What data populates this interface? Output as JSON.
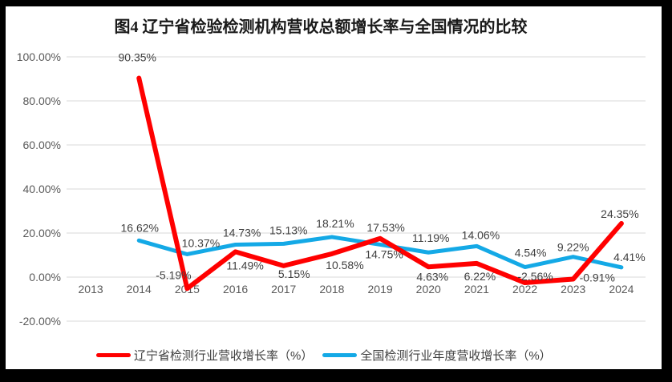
{
  "chart_data": {
    "type": "line",
    "title": "图4 辽宁省检验检测机构营收总额增长率与全国情况的比较",
    "categories": [
      "2013",
      "2014",
      "2015",
      "2016",
      "2017",
      "2018",
      "2019",
      "2020",
      "2021",
      "2022",
      "2023",
      "2024"
    ],
    "y_tick_labels": [
      "100.00%",
      "80.00%",
      "60.00%",
      "40.00%",
      "20.00%",
      "0.00%",
      "-20.00%"
    ],
    "ylim": [
      -20,
      100
    ],
    "grid": true,
    "legend_position": "bottom",
    "grid_color": "#D9D9D9",
    "axis_text_color": "#595959",
    "label_color": "#404040",
    "frame_color": "#000000",
    "series": [
      {
        "id": "liaoning",
        "name": "辽宁省检测行业营收增长率（%）",
        "color": "#FF0000",
        "stroke_width": 6,
        "values": [
          null,
          90.35,
          -5.19,
          11.49,
          5.15,
          10.58,
          17.53,
          4.63,
          6.22,
          -2.56,
          -0.91,
          24.35
        ],
        "label_offsets": [
          null,
          [
            -2,
            -26
          ],
          [
            -17,
            -17
          ],
          [
            12,
            17
          ],
          [
            13,
            10
          ],
          [
            16,
            14
          ],
          [
            7,
            -14
          ],
          [
            5,
            12
          ],
          [
            4,
            16
          ],
          [
            13,
            -8
          ],
          [
            30,
            -2
          ],
          [
            -2,
            -12
          ]
        ]
      },
      {
        "id": "national",
        "name": "全国检测行业年度营收增长率（%）",
        "color": "#14A9E6",
        "stroke_width": 5,
        "values": [
          null,
          16.62,
          10.37,
          14.73,
          15.13,
          18.21,
          14.75,
          11.19,
          14.06,
          4.54,
          9.22,
          4.41
        ],
        "label_offsets": [
          null,
          [
            1,
            -16
          ],
          [
            17,
            -14
          ],
          [
            8,
            -15
          ],
          [
            6,
            -17
          ],
          [
            4,
            -17
          ],
          [
            5,
            12
          ],
          [
            3,
            -18
          ],
          [
            5,
            -14
          ],
          [
            7,
            -18
          ],
          [
            0,
            -12
          ],
          [
            10,
            -13
          ]
        ]
      }
    ]
  }
}
